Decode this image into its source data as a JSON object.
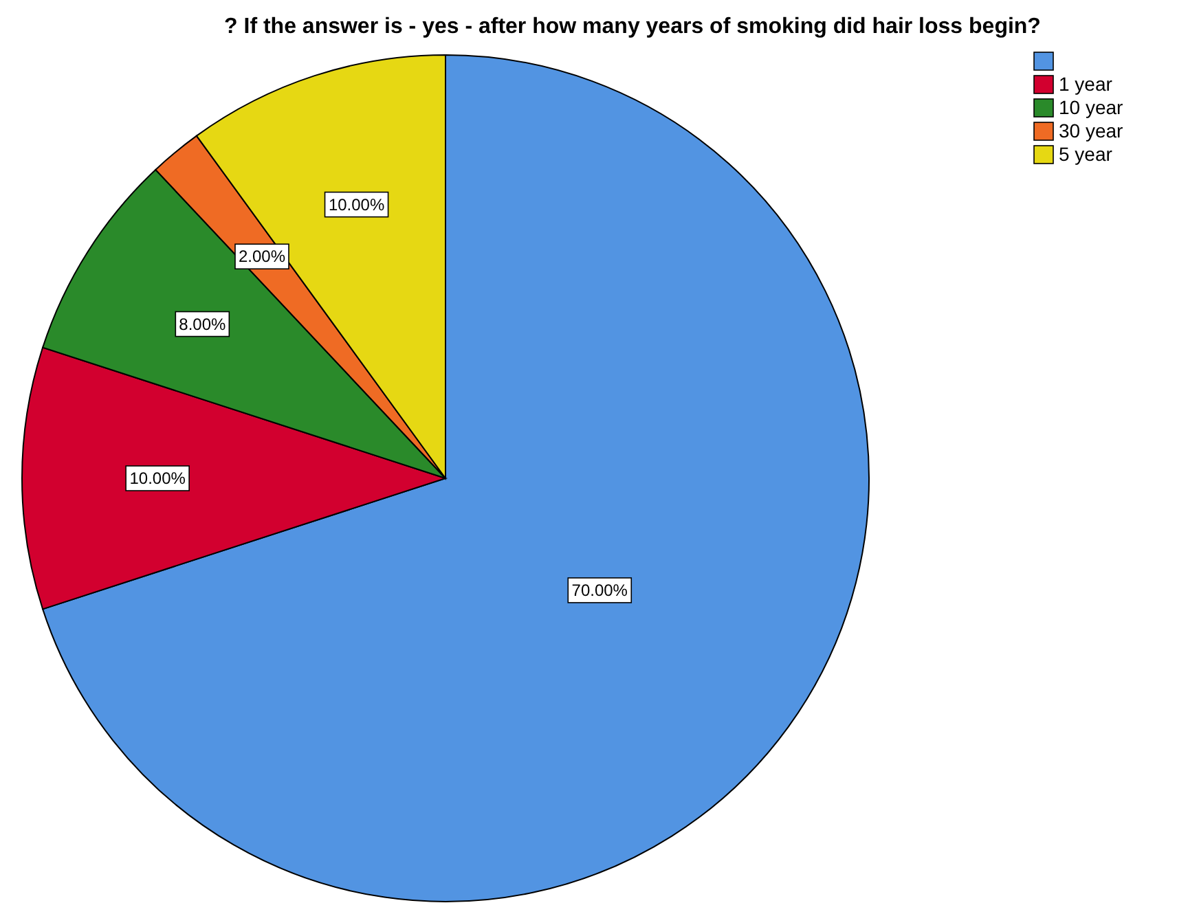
{
  "chart_data": {
    "type": "pie",
    "title": "?  If the answer is - yes - after how many years of smoking did hair loss begin?",
    "categories": [
      null,
      "1 year",
      "10 year",
      "30 year",
      "5 year"
    ],
    "values": [
      70,
      10,
      8,
      2,
      10
    ],
    "value_labels": [
      "70.00%",
      "10.00%",
      "8.00%",
      "2.00%",
      "10.00%"
    ],
    "colors": [
      "#5294e2",
      "#d2002f",
      "#2a8a2a",
      "#ef6b24",
      "#e6d813"
    ],
    "legend": "top right"
  }
}
